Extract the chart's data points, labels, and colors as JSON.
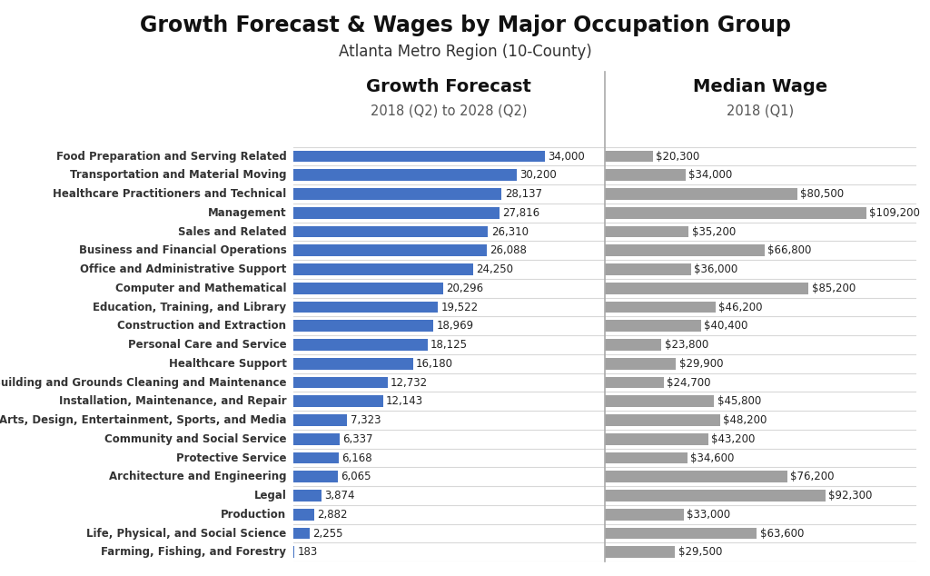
{
  "title": "Growth Forecast & Wages by Major Occupation Group",
  "subtitle": "Atlanta Metro Region (10-County)",
  "left_header": "Growth Forecast",
  "left_subheader": "2018 (Q2) to 2028 (Q2)",
  "right_header": "Median Wage",
  "right_subheader": "2018 (Q1)",
  "categories": [
    "Food Preparation and Serving Related",
    "Transportation and Material Moving",
    "Healthcare Practitioners and Technical",
    "Management",
    "Sales and Related",
    "Business and Financial Operations",
    "Office and Administrative Support",
    "Computer and Mathematical",
    "Education, Training, and Library",
    "Construction and Extraction",
    "Personal Care and Service",
    "Healthcare Support",
    "Building and Grounds Cleaning and Maintenance",
    "Installation, Maintenance, and Repair",
    "Arts, Design, Entertainment, Sports, and Media",
    "Community and Social Service",
    "Protective Service",
    "Architecture and Engineering",
    "Legal",
    "Production",
    "Life, Physical, and Social Science",
    "Farming, Fishing, and Forestry"
  ],
  "growth_values": [
    34000,
    30200,
    28137,
    27816,
    26310,
    26088,
    24250,
    20296,
    19522,
    18969,
    18125,
    16180,
    12732,
    12143,
    7323,
    6337,
    6168,
    6065,
    3874,
    2882,
    2255,
    183
  ],
  "growth_labels": [
    "34,000",
    "30,200",
    "28,137",
    "27,816",
    "26,310",
    "26,088",
    "24,250",
    "20,296",
    "19,522",
    "18,969",
    "18,125",
    "16,180",
    "12,732",
    "12,143",
    "7,323",
    "6,337",
    "6,168",
    "6,065",
    "3,874",
    "2,882",
    "2,255",
    "183"
  ],
  "wage_values": [
    20300,
    34000,
    80500,
    109200,
    35200,
    66800,
    36000,
    85200,
    46200,
    40400,
    23800,
    29900,
    24700,
    45800,
    48200,
    43200,
    34600,
    76200,
    92300,
    33000,
    63600,
    29500
  ],
  "wage_labels": [
    "$20,300",
    "$34,000",
    "$80,500",
    "$109,200",
    "$35,200",
    "$66,800",
    "$36,000",
    "$85,200",
    "$46,200",
    "$40,400",
    "$23,800",
    "$29,900",
    "$24,700",
    "$45,800",
    "$48,200",
    "$43,200",
    "$34,600",
    "$76,200",
    "$92,300",
    "$33,000",
    "$63,600",
    "$29,500"
  ],
  "growth_color": "#4472C4",
  "wage_color": "#A0A0A0",
  "background_color": "#FFFFFF",
  "grid_color": "#D8D8D8",
  "title_fontsize": 17,
  "subtitle_fontsize": 12,
  "header_fontsize": 14,
  "subheader_fontsize": 10.5,
  "bar_label_fontsize": 8.5,
  "category_fontsize": 8.5,
  "growth_xlim": 42000,
  "wage_xlim": 130000
}
